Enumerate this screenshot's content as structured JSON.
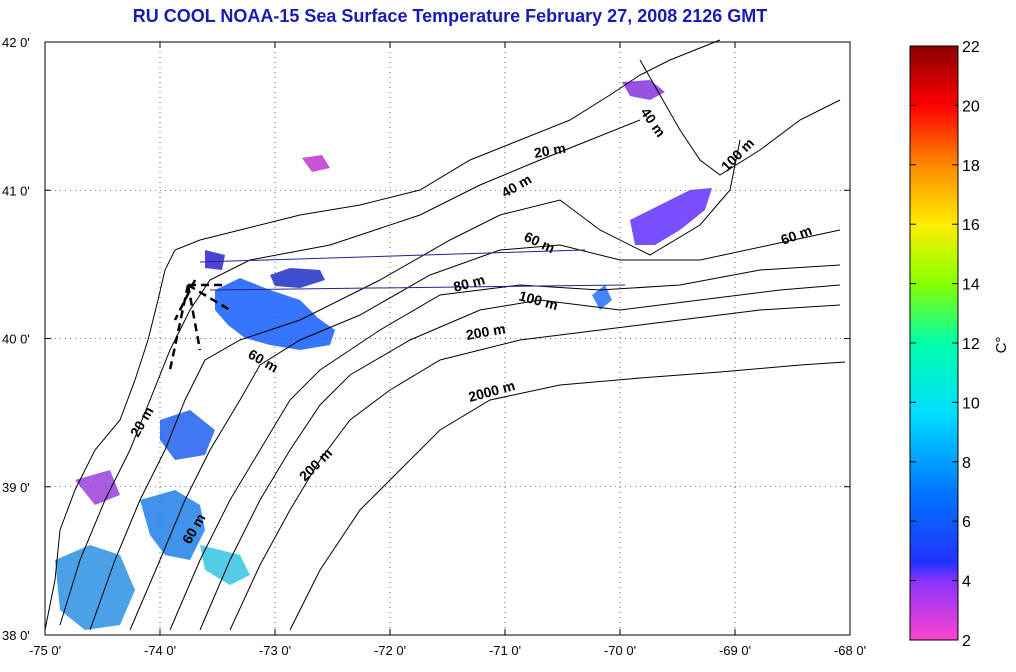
{
  "title": "RU COOL  NOAA-15 Sea Surface Temperature February 27, 2008 2126 GMT",
  "map": {
    "lon_range": [
      -75,
      -68
    ],
    "lat_range": [
      38,
      42
    ],
    "lon_ticks": [
      "-75 0'",
      "-74 0'",
      "-73 0'",
      "-72 0'",
      "-71 0'",
      "-70 0'",
      "-69 0'",
      "-68 0'"
    ],
    "lat_ticks": [
      "42 0'",
      "41 0'",
      "40 0'",
      "39 0'",
      "38 0'"
    ],
    "grid": "dotted",
    "contour_labels": [
      "20 m",
      "40 m",
      "40 m",
      "100 m",
      "60 m",
      "60 m",
      "80 m",
      "100 m",
      "200 m",
      "2000 m",
      "60 m",
      "20 m",
      "200 m",
      "60 m"
    ]
  },
  "colorbar": {
    "ticks": [
      "22",
      "20",
      "18",
      "16",
      "14",
      "12",
      "10",
      "8",
      "6",
      "4",
      "2"
    ],
    "unit": "C°",
    "range": [
      2,
      22
    ],
    "colors": [
      "#ff44cc",
      "#8833ff",
      "#2233ff",
      "#0077ff",
      "#00ddff",
      "#00ffaa",
      "#88ff00",
      "#ffee00",
      "#ff8800",
      "#ff0000",
      "#8b0000"
    ]
  }
}
